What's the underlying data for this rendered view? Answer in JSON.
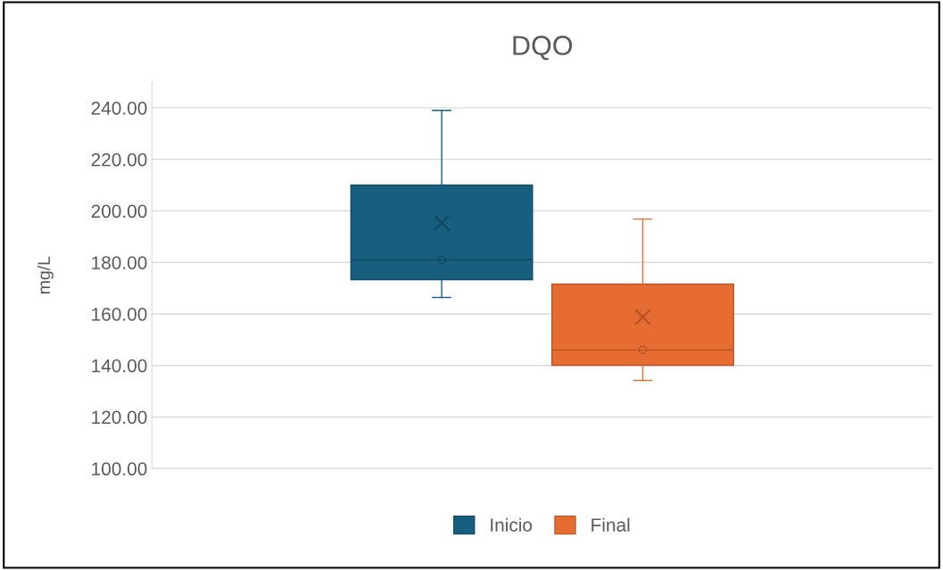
{
  "chart_data": {
    "type": "box",
    "title": "DQO",
    "ylabel": "mg/L",
    "categories": [
      null
    ],
    "series": [
      {
        "name": "Inicio",
        "color": "#175e7f",
        "boxes": [
          {
            "low": 166.4,
            "q1": 173.3,
            "median": 181,
            "q3": 210,
            "high": 239,
            "mean": 195.4
          }
        ]
      },
      {
        "name": "Final",
        "color": "#e66c32",
        "boxes": [
          {
            "low": 134.2,
            "q1": 140.1,
            "median": 146,
            "q3": 171.6,
            "high": 196.8,
            "mean": 158.8
          }
        ]
      },
      {
        "type": "scatter",
        "color": "#124b66",
        "values": [
          181
        ]
      },
      {
        "type": "scatter",
        "color": "#b85628",
        "values": [
          146
        ]
      }
    ],
    "ylim": [
      100,
      250
    ],
    "yticks": [
      {
        "value": 100,
        "label": "100.00"
      },
      {
        "value": 120,
        "label": "120.00"
      },
      {
        "value": 140,
        "label": "140.00"
      },
      {
        "value": 160,
        "label": "160.00"
      },
      {
        "value": 180,
        "label": "180.00"
      },
      {
        "value": 200,
        "label": "200.00"
      },
      {
        "value": 220,
        "label": "220.00"
      },
      {
        "value": 240,
        "label": "240.00"
      }
    ],
    "grid": "y",
    "legend": "bottom"
  }
}
